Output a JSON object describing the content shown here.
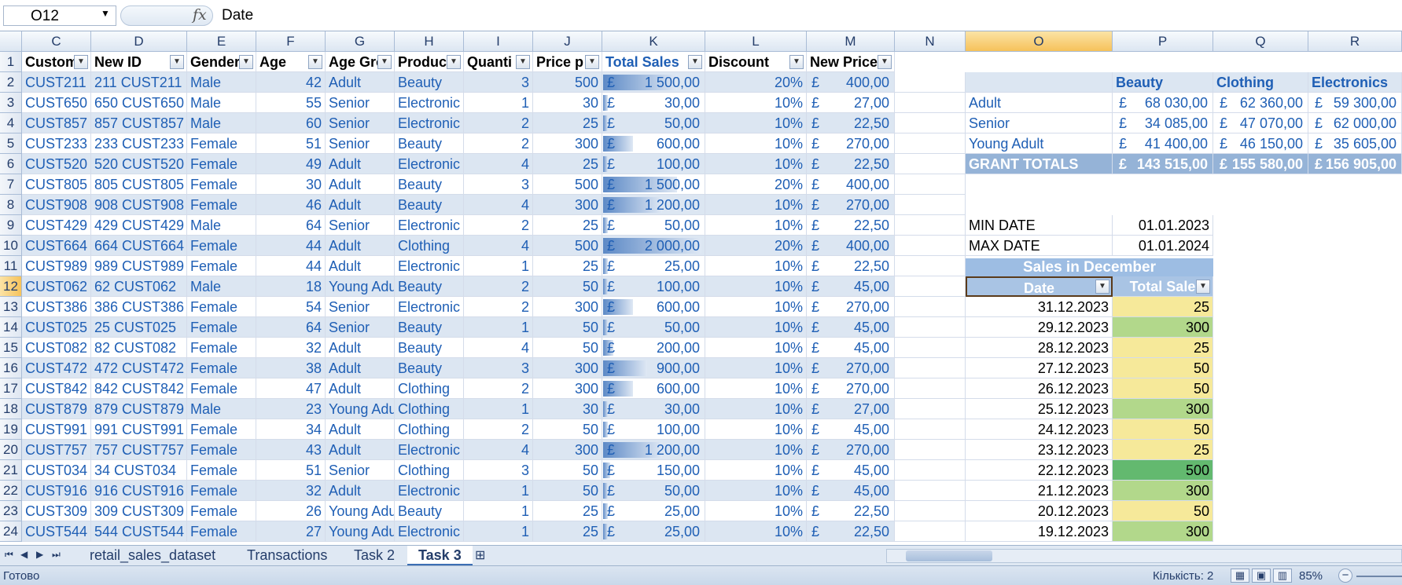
{
  "formula_bar": {
    "name_box": "O12",
    "formula_text": "Date",
    "fx_label": "fx"
  },
  "columns": [
    {
      "key": "C",
      "label": "C"
    },
    {
      "key": "D",
      "label": "D"
    },
    {
      "key": "E",
      "label": "E"
    },
    {
      "key": "F",
      "label": "F"
    },
    {
      "key": "G",
      "label": "G"
    },
    {
      "key": "H",
      "label": "H"
    },
    {
      "key": "I",
      "label": "I"
    },
    {
      "key": "J",
      "label": "J"
    },
    {
      "key": "K",
      "label": "K"
    },
    {
      "key": "L",
      "label": "L"
    },
    {
      "key": "M",
      "label": "M"
    },
    {
      "key": "N",
      "label": "N"
    },
    {
      "key": "O",
      "label": "O",
      "selected": true
    },
    {
      "key": "P",
      "label": "P"
    },
    {
      "key": "Q",
      "label": "Q"
    },
    {
      "key": "R",
      "label": "R"
    }
  ],
  "table_headers": [
    "Custom",
    "New ID",
    "Gender",
    "Age",
    "Age Gro",
    "Produc",
    "Quanti",
    "Price p",
    "Total Sales",
    "Discount",
    "New Price"
  ],
  "rows": [
    {
      "n": "2",
      "cust": "CUST211",
      "id": "211 CUST211",
      "gender": "Male",
      "age": "42",
      "group": "Adult",
      "product": "Beauty",
      "qty": "3",
      "price": "500",
      "total": "1 500,00",
      "disc": "20%",
      "newp": "400,00",
      "bar": 0.75
    },
    {
      "n": "3",
      "cust": "CUST650",
      "id": "650 CUST650",
      "gender": "Male",
      "age": "55",
      "group": "Senior",
      "product": "Electronic",
      "qty": "1",
      "price": "30",
      "total": "30,00",
      "disc": "10%",
      "newp": "27,00",
      "bar": 0.015
    },
    {
      "n": "4",
      "cust": "CUST857",
      "id": "857 CUST857",
      "gender": "Male",
      "age": "60",
      "group": "Senior",
      "product": "Electronic",
      "qty": "2",
      "price": "25",
      "total": "50,00",
      "disc": "10%",
      "newp": "22,50",
      "bar": 0.025
    },
    {
      "n": "5",
      "cust": "CUST233",
      "id": "233 CUST233",
      "gender": "Female",
      "age": "51",
      "group": "Senior",
      "product": "Beauty",
      "qty": "2",
      "price": "300",
      "total": "600,00",
      "disc": "10%",
      "newp": "270,00",
      "bar": 0.3
    },
    {
      "n": "6",
      "cust": "CUST520",
      "id": "520 CUST520",
      "gender": "Female",
      "age": "49",
      "group": "Adult",
      "product": "Electronic",
      "qty": "4",
      "price": "25",
      "total": "100,00",
      "disc": "10%",
      "newp": "22,50",
      "bar": 0.05
    },
    {
      "n": "7",
      "cust": "CUST805",
      "id": "805 CUST805",
      "gender": "Female",
      "age": "30",
      "group": "Adult",
      "product": "Beauty",
      "qty": "3",
      "price": "500",
      "total": "1 500,00",
      "disc": "20%",
      "newp": "400,00",
      "bar": 0.75
    },
    {
      "n": "8",
      "cust": "CUST908",
      "id": "908 CUST908",
      "gender": "Female",
      "age": "46",
      "group": "Adult",
      "product": "Beauty",
      "qty": "4",
      "price": "300",
      "total": "1 200,00",
      "disc": "10%",
      "newp": "270,00",
      "bar": 0.6
    },
    {
      "n": "9",
      "cust": "CUST429",
      "id": "429 CUST429",
      "gender": "Male",
      "age": "64",
      "group": "Senior",
      "product": "Electronic",
      "qty": "2",
      "price": "25",
      "total": "50,00",
      "disc": "10%",
      "newp": "22,50",
      "bar": 0.025
    },
    {
      "n": "10",
      "cust": "CUST664",
      "id": "664 CUST664",
      "gender": "Female",
      "age": "44",
      "group": "Adult",
      "product": "Clothing",
      "qty": "4",
      "price": "500",
      "total": "2 000,00",
      "disc": "20%",
      "newp": "400,00",
      "bar": 1.0
    },
    {
      "n": "11",
      "cust": "CUST989",
      "id": "989 CUST989",
      "gender": "Female",
      "age": "44",
      "group": "Adult",
      "product": "Electronic",
      "qty": "1",
      "price": "25",
      "total": "25,00",
      "disc": "10%",
      "newp": "22,50",
      "bar": 0.0125
    },
    {
      "n": "12",
      "cust": "CUST062",
      "id": "62 CUST062",
      "gender": "Male",
      "age": "18",
      "group": "Young Adu",
      "product": "Beauty",
      "qty": "2",
      "price": "50",
      "total": "100,00",
      "disc": "10%",
      "newp": "45,00",
      "bar": 0.05
    },
    {
      "n": "13",
      "cust": "CUST386",
      "id": "386 CUST386",
      "gender": "Female",
      "age": "54",
      "group": "Senior",
      "product": "Electronic",
      "qty": "2",
      "price": "300",
      "total": "600,00",
      "disc": "10%",
      "newp": "270,00",
      "bar": 0.3
    },
    {
      "n": "14",
      "cust": "CUST025",
      "id": "25 CUST025",
      "gender": "Female",
      "age": "64",
      "group": "Senior",
      "product": "Beauty",
      "qty": "1",
      "price": "50",
      "total": "50,00",
      "disc": "10%",
      "newp": "45,00",
      "bar": 0.025
    },
    {
      "n": "15",
      "cust": "CUST082",
      "id": "82 CUST082",
      "gender": "Female",
      "age": "32",
      "group": "Adult",
      "product": "Beauty",
      "qty": "4",
      "price": "50",
      "total": "200,00",
      "disc": "10%",
      "newp": "45,00",
      "bar": 0.1
    },
    {
      "n": "16",
      "cust": "CUST472",
      "id": "472 CUST472",
      "gender": "Female",
      "age": "38",
      "group": "Adult",
      "product": "Beauty",
      "qty": "3",
      "price": "300",
      "total": "900,00",
      "disc": "10%",
      "newp": "270,00",
      "bar": 0.45
    },
    {
      "n": "17",
      "cust": "CUST842",
      "id": "842 CUST842",
      "gender": "Female",
      "age": "47",
      "group": "Adult",
      "product": "Clothing",
      "qty": "2",
      "price": "300",
      "total": "600,00",
      "disc": "10%",
      "newp": "270,00",
      "bar": 0.3
    },
    {
      "n": "18",
      "cust": "CUST879",
      "id": "879 CUST879",
      "gender": "Male",
      "age": "23",
      "group": "Young Adu",
      "product": "Clothing",
      "qty": "1",
      "price": "30",
      "total": "30,00",
      "disc": "10%",
      "newp": "27,00",
      "bar": 0.015
    },
    {
      "n": "19",
      "cust": "CUST991",
      "id": "991 CUST991",
      "gender": "Female",
      "age": "34",
      "group": "Adult",
      "product": "Clothing",
      "qty": "2",
      "price": "50",
      "total": "100,00",
      "disc": "10%",
      "newp": "45,00",
      "bar": 0.05
    },
    {
      "n": "20",
      "cust": "CUST757",
      "id": "757 CUST757",
      "gender": "Female",
      "age": "43",
      "group": "Adult",
      "product": "Electronic",
      "qty": "4",
      "price": "300",
      "total": "1 200,00",
      "disc": "10%",
      "newp": "270,00",
      "bar": 0.6
    },
    {
      "n": "21",
      "cust": "CUST034",
      "id": "34 CUST034",
      "gender": "Female",
      "age": "51",
      "group": "Senior",
      "product": "Clothing",
      "qty": "3",
      "price": "50",
      "total": "150,00",
      "disc": "10%",
      "newp": "45,00",
      "bar": 0.075
    },
    {
      "n": "22",
      "cust": "CUST916",
      "id": "916 CUST916",
      "gender": "Female",
      "age": "32",
      "group": "Adult",
      "product": "Electronic",
      "qty": "1",
      "price": "50",
      "total": "50,00",
      "disc": "10%",
      "newp": "45,00",
      "bar": 0.025
    },
    {
      "n": "23",
      "cust": "CUST309",
      "id": "309 CUST309",
      "gender": "Female",
      "age": "26",
      "group": "Young Adu",
      "product": "Beauty",
      "qty": "1",
      "price": "25",
      "total": "25,00",
      "disc": "10%",
      "newp": "22,50",
      "bar": 0.0125
    },
    {
      "n": "24",
      "cust": "CUST544",
      "id": "544 CUST544",
      "gender": "Female",
      "age": "27",
      "group": "Young Adu",
      "product": "Electronic",
      "qty": "1",
      "price": "25",
      "total": "25,00",
      "disc": "10%",
      "newp": "22,50",
      "bar": 0.0125
    }
  ],
  "currency": "£",
  "pivot": {
    "headers": [
      "Beauty",
      "Clothing",
      "Electronics"
    ],
    "rows": [
      {
        "label": "Adult",
        "values": [
          "68 030,00",
          "62 360,00",
          "59 300,00"
        ]
      },
      {
        "label": "Senior",
        "values": [
          "34 085,00",
          "47 070,00",
          "62 000,00"
        ]
      },
      {
        "label": "Young Adult",
        "values": [
          "41 400,00",
          "46 150,00",
          "35 605,00"
        ]
      }
    ],
    "total_label": "GRANT TOTALS",
    "totals": [
      "143 515,00",
      "155 580,00",
      "156 905,00"
    ]
  },
  "date_range": {
    "min_label": "MIN DATE",
    "min_value": "01.01.2023",
    "max_label": "MAX DATE",
    "max_value": "01.01.2024"
  },
  "december": {
    "title": "Sales in December",
    "headers": [
      "Date",
      "Total Sale"
    ],
    "rows": [
      {
        "date": "31.12.2023",
        "sale": "25",
        "cf": "y"
      },
      {
        "date": "29.12.2023",
        "sale": "300",
        "cf": "g1"
      },
      {
        "date": "28.12.2023",
        "sale": "25",
        "cf": "y"
      },
      {
        "date": "27.12.2023",
        "sale": "50",
        "cf": "y"
      },
      {
        "date": "26.12.2023",
        "sale": "50",
        "cf": "y"
      },
      {
        "date": "25.12.2023",
        "sale": "300",
        "cf": "g1"
      },
      {
        "date": "24.12.2023",
        "sale": "50",
        "cf": "y"
      },
      {
        "date": "23.12.2023",
        "sale": "25",
        "cf": "y"
      },
      {
        "date": "22.12.2023",
        "sale": "500",
        "cf": "g2"
      },
      {
        "date": "21.12.2023",
        "sale": "300",
        "cf": "g1"
      },
      {
        "date": "20.12.2023",
        "sale": "50",
        "cf": "y"
      },
      {
        "date": "19.12.2023",
        "sale": "300",
        "cf": "g1"
      }
    ]
  },
  "sheet_tabs": [
    {
      "label": "retail_sales_dataset",
      "active": false
    },
    {
      "label": "Transactions",
      "active": false
    },
    {
      "label": "Task 2",
      "active": false
    },
    {
      "label": "Task 3",
      "active": true
    }
  ],
  "status_bar": {
    "status": "Готово",
    "count": "Кількість: 2",
    "zoom": "85%"
  },
  "colors": {
    "accent": "#1f5fb5",
    "band": "#dce6f2",
    "selected_header": "#f6c25a"
  }
}
